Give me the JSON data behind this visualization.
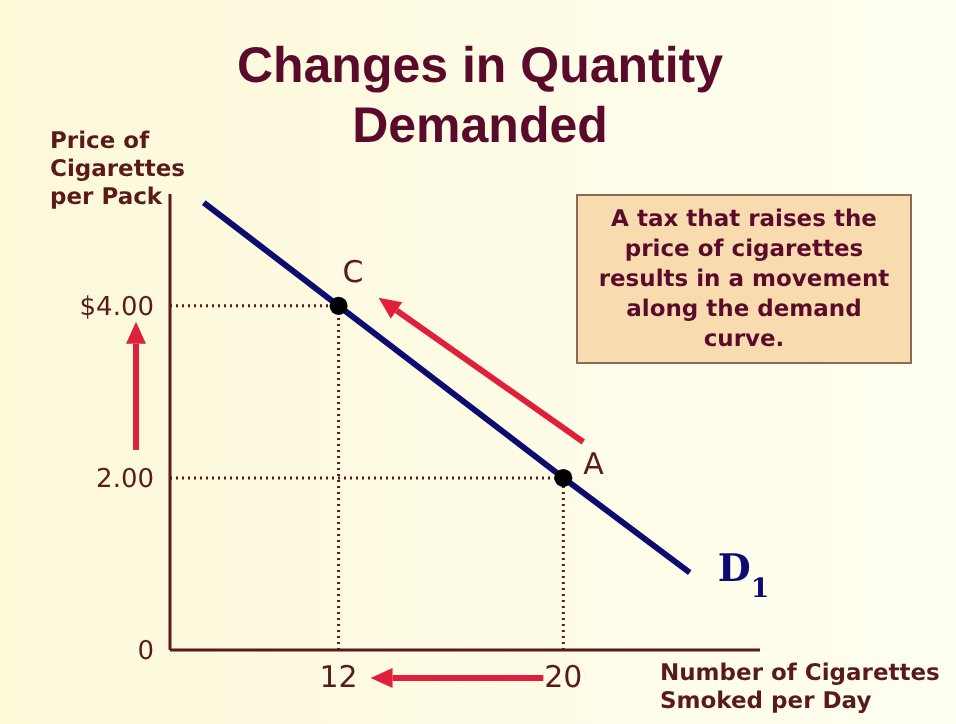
{
  "chart_data": {
    "type": "line",
    "title": "Changes in Quantity Demanded",
    "xlabel": "Number of Cigarettes Smoked per Day",
    "ylabel": "Price of Cigarettes per Pack",
    "xlim": [
      6,
      27
    ],
    "xticks": [
      12,
      20
    ],
    "ylim": [
      0,
      5.3
    ],
    "yticks": [
      0,
      {
        "value": 2,
        "label": "2.00"
      },
      {
        "value": 4,
        "label": "$4.00"
      }
    ],
    "series": [
      {
        "name": "D$_{1}$",
        "color": "#0c0c70",
        "x": [
          7.2,
          12,
          20,
          24.5
        ],
        "values": [
          5.2,
          4,
          2,
          0.9
        ],
        "marker": "none"
      },
      {
        "type": "scatter",
        "color": "#000000",
        "x": [
          12,
          20
        ],
        "values": [
          4,
          2
        ],
        "marker": "circle"
      }
    ],
    "ref_lines": [
      {
        "axis": "y",
        "value": 4,
        "color": "#5a1a1a",
        "line_style": "dotted"
      },
      {
        "axis": "y",
        "value": 2,
        "color": "#5a1a1a",
        "line_style": "dotted"
      },
      {
        "axis": "x",
        "value": 12,
        "color": "#5a1a1a",
        "line_style": "dotted"
      },
      {
        "axis": "x",
        "value": 20,
        "color": "#5a1a1a",
        "line_style": "dotted"
      }
    ],
    "annotations": [
      {
        "text": "C",
        "x": 12,
        "y": 4
      },
      {
        "text": "A",
        "x": 20,
        "y": 2
      },
      "A tax that raises the price of cigarettes results in a movement along the demand curve."
    ]
  }
}
